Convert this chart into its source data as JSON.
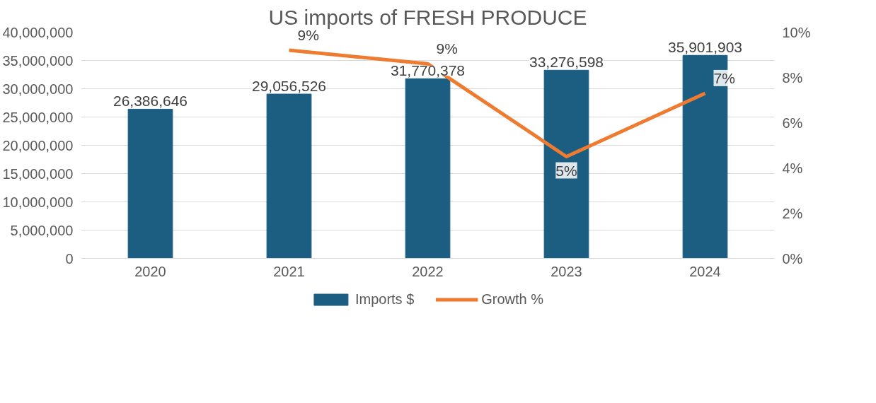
{
  "chart_data": {
    "type": "bar",
    "title": "US imports of FRESH PRODUCE",
    "categories": [
      "2020",
      "2021",
      "2022",
      "2023",
      "2024"
    ],
    "series": [
      {
        "name": "Imports $",
        "type": "bar",
        "color": "#1b5e82",
        "values": [
          26386646,
          29056526,
          31770378,
          33276598,
          35901903
        ],
        "value_labels": [
          "26,386,646",
          "29,056,526",
          "31,770,378",
          "33,276,598",
          "35,901,903"
        ]
      },
      {
        "name": "Growth %",
        "type": "line",
        "axis": "y2",
        "color": "#ef7b31",
        "values": [
          null,
          9.2,
          8.6,
          4.5,
          7.3
        ],
        "value_labels": [
          null,
          "9%",
          "9%",
          "5%",
          "7%"
        ]
      }
    ],
    "ylim": [
      0,
      40000000
    ],
    "yticks": [
      {
        "value": 0,
        "label": "0"
      },
      {
        "value": 5000000,
        "label": "5,000,000"
      },
      {
        "value": 10000000,
        "label": "10,000,000"
      },
      {
        "value": 15000000,
        "label": "15,000,000"
      },
      {
        "value": 20000000,
        "label": "20,000,000"
      },
      {
        "value": 25000000,
        "label": "25,000,000"
      },
      {
        "value": 30000000,
        "label": "30,000,000"
      },
      {
        "value": 35000000,
        "label": "35,000,000"
      },
      {
        "value": 40000000,
        "label": "40,000,000"
      }
    ],
    "y2lim": [
      0,
      10
    ],
    "y2ticks": [
      {
        "value": 0,
        "label": "0%"
      },
      {
        "value": 2,
        "label": "2%"
      },
      {
        "value": 4,
        "label": "4%"
      },
      {
        "value": 6,
        "label": "6%"
      },
      {
        "value": 8,
        "label": "8%"
      },
      {
        "value": 10,
        "label": "10%"
      }
    ],
    "grid": "y",
    "legend": "bottom"
  }
}
